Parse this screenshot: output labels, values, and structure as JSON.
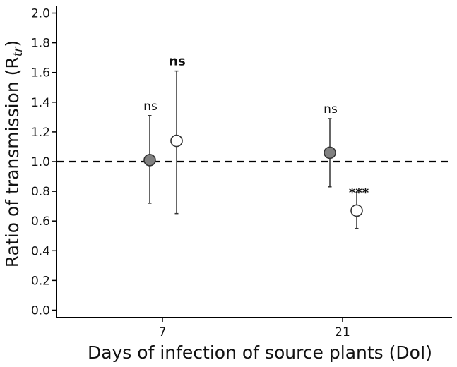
{
  "chart_data": {
    "type": "scatter",
    "title": "",
    "xlabel": "Days of infection of source plants (DoI)",
    "ylabel": "Ratio of transmission (R",
    "ylabel_sub": "tr",
    "ylabel_close": ")",
    "ylim": [
      -0.05,
      2.05
    ],
    "yticks": [
      "0.0",
      "0.2",
      "0.4",
      "0.6",
      "0.8",
      "1.0",
      "1.2",
      "1.4",
      "1.6",
      "1.8",
      "2.0"
    ],
    "yticks_values": [
      0.0,
      0.2,
      0.4,
      0.6,
      0.8,
      1.0,
      1.2,
      1.4,
      1.6,
      1.8,
      2.0
    ],
    "categories": [
      "7",
      "21"
    ],
    "reference_line": 1.0,
    "grid": false,
    "legend": "none",
    "series": [
      {
        "color": "#808080",
        "points": [
          {
            "category": "7",
            "y": 1.01,
            "low": 0.72,
            "high": 1.31,
            "label": "ns",
            "label_bold": false
          },
          {
            "category": "21",
            "y": 1.06,
            "low": 0.83,
            "high": 1.29,
            "label": "ns",
            "label_bold": false
          }
        ]
      },
      {
        "color": "#ffffff",
        "points": [
          {
            "category": "7",
            "y": 1.14,
            "low": 0.65,
            "high": 1.61,
            "label": "ns",
            "label_bold": true
          },
          {
            "category": "21",
            "y": 0.67,
            "low": 0.55,
            "high": 0.79,
            "label": "***",
            "label_bold": true
          }
        ]
      }
    ]
  }
}
